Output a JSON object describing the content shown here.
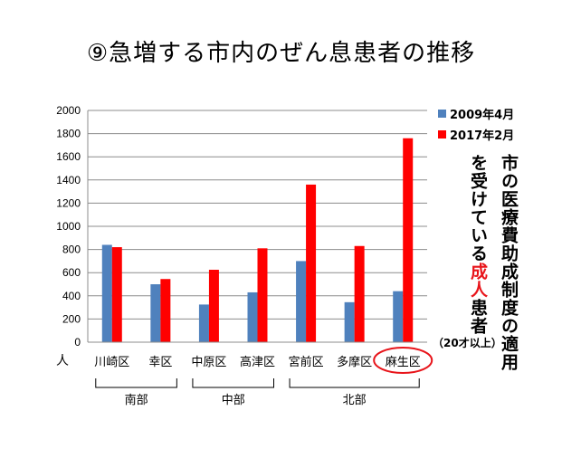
{
  "title": "⑨急増する市内のぜん息患者の推移",
  "chart_data": {
    "type": "bar",
    "categories": [
      "川崎区",
      "幸区",
      "中原区",
      "高津区",
      "宮前区",
      "多摩区",
      "麻生区"
    ],
    "series": [
      {
        "name": "2009年4月",
        "color": "#4f81bd",
        "values": [
          840,
          500,
          325,
          430,
          700,
          345,
          440
        ]
      },
      {
        "name": "2017年2月",
        "color": "#ff0000",
        "values": [
          820,
          545,
          625,
          810,
          1360,
          830,
          1760
        ]
      }
    ],
    "ylim": [
      0,
      2000
    ],
    "yticks": [
      "0",
      "200",
      "400",
      "600",
      "800",
      "1000",
      "1200",
      "1400",
      "1600",
      "1800",
      "2000"
    ],
    "ylabel": "人",
    "legend_position": "top-right",
    "highlighted_category": "麻生区",
    "groups": [
      {
        "label": "南部",
        "categories": [
          "川崎区",
          "幸区"
        ]
      },
      {
        "label": "中部",
        "categories": [
          "中原区",
          "高津区"
        ]
      },
      {
        "label": "北部",
        "categories": [
          "宮前区",
          "多摩区",
          "麻生区"
        ]
      }
    ]
  },
  "annotation": {
    "line1": "市の医療費助成制度の適用",
    "line2_before": "を受けている",
    "line2_highlight": "成人",
    "line2_after": "患者",
    "age_note": "（20才以上）",
    "highlight_color": "#e8141a"
  }
}
